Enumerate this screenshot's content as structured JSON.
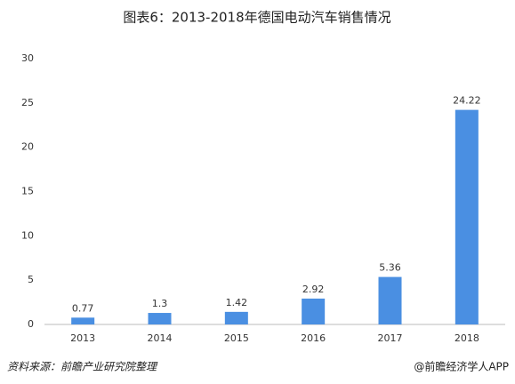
{
  "chart_data": {
    "type": "bar",
    "title": "图表6：2013-2018年德国电动汽车销售情况",
    "categories": [
      "2013",
      "2014",
      "2015",
      "2016",
      "2017",
      "2018"
    ],
    "values": [
      0.77,
      1.3,
      1.42,
      2.92,
      5.36,
      24.22
    ],
    "color": "#4a8fe2",
    "ylim": [
      0,
      30
    ],
    "yticks": [
      0,
      5,
      10,
      15,
      20,
      25,
      30
    ],
    "grid": false
  },
  "footer": {
    "source": "资料来源：前瞻产业研究院整理",
    "brand": "@前瞻经济学人APP"
  }
}
